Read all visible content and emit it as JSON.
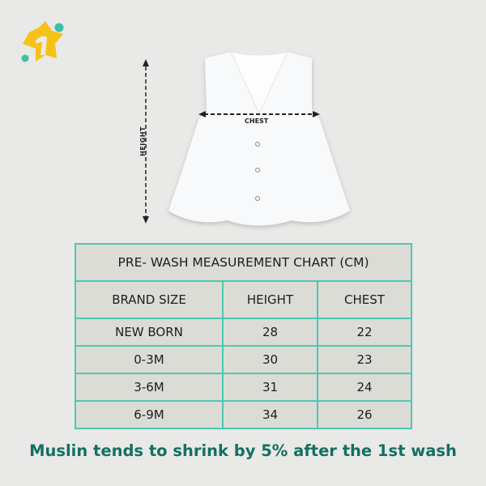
{
  "colors": {
    "accent": "#4fc7b1",
    "note": "#137060",
    "logo_star": "#f6c218",
    "logo_dots": "#3fbfa5"
  },
  "logo": {
    "icon": "star-one-logo"
  },
  "diagram": {
    "height_label": "HEIGHT",
    "chest_label": "CHEST"
  },
  "table": {
    "title": "PRE- WASH MEASUREMENT CHART (CM)",
    "headers": [
      "BRAND SIZE",
      "HEIGHT",
      "CHEST"
    ],
    "rows": [
      [
        "NEW BORN",
        "28",
        "22"
      ],
      [
        "0-3M",
        "30",
        "23"
      ],
      [
        "3-6M",
        "31",
        "24"
      ],
      [
        "6-9M",
        "34",
        "26"
      ]
    ]
  },
  "note": "Muslin tends to shrink by 5% after the 1st wash"
}
